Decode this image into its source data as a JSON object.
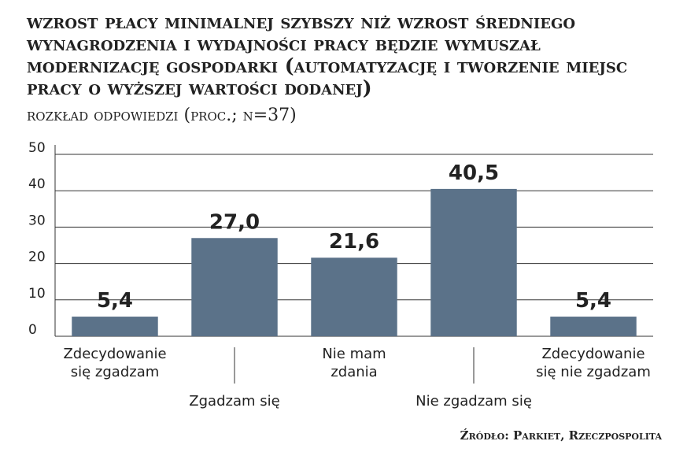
{
  "chart_data": {
    "type": "bar",
    "title": "Wzrost płacy minimalnej szybszy niż wzrost średniego wynagrodzenia i wydajności pracy będzie wymuszał modernizację gospodarki (automatyzację i tworzenie miejsc pracy o wyższej wartości dodanej)",
    "subtitle": "rozkład odpowiedzi (proc.; N=37)",
    "source": "Źródło: Parkiet, Rzeczpospolita",
    "categories": [
      "Zdecydowanie\nsię zgadzam",
      "Zgadzam się",
      "Nie mam\nzdania",
      "Nie zgadzam się",
      "Zdecydowanie\nsię nie zgadzam"
    ],
    "values": [
      5.4,
      27.0,
      21.6,
      40.5,
      5.4
    ],
    "value_labels": [
      "5,4",
      "27,0",
      "21,6",
      "40,5",
      "5,4"
    ],
    "color": "#5b7289",
    "ylim": [
      0,
      50
    ],
    "yticks": [
      0,
      10,
      20,
      30,
      40,
      50
    ],
    "grid": true
  }
}
